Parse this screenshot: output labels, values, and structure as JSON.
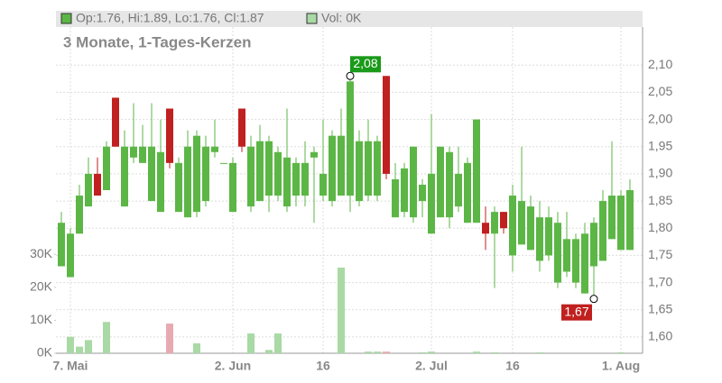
{
  "chart_data": {
    "type": "candlestick",
    "title": "3 Monate, 1-Tages-Kerzen",
    "legend": [
      "Op:1.76, Hi:1.89, Lo:1.76, Cl:1.87",
      "Vol: 0K"
    ],
    "up_color": "#5cb646",
    "down_color": "#c0201f",
    "volume_up_color": "#a9d9a4",
    "volume_down_color": "#e9a9b1",
    "categories": [
      null,
      "7. Mai",
      null,
      null,
      null,
      null,
      null,
      null,
      null,
      null,
      null,
      null,
      null,
      null,
      null,
      null,
      null,
      null,
      null,
      "2. Jun",
      null,
      null,
      null,
      null,
      null,
      null,
      null,
      null,
      null,
      "16",
      null,
      null,
      null,
      null,
      null,
      null,
      null,
      null,
      null,
      null,
      null,
      "2. Jul",
      null,
      null,
      null,
      null,
      null,
      null,
      null,
      null,
      "16",
      null,
      null,
      null,
      null,
      null,
      null,
      null,
      null,
      null,
      null,
      null,
      "1. Aug",
      null
    ],
    "series": [
      {
        "name": "open",
        "values": [
          1.73,
          1.71,
          1.79,
          1.84,
          1.9,
          1.87,
          2.04,
          1.84,
          1.93,
          1.92,
          1.85,
          1.83,
          2.02,
          1.83,
          1.82,
          1.83,
          1.85,
          1.94,
          1.92,
          1.83,
          2.02,
          1.84,
          1.85,
          1.86,
          1.86,
          1.84,
          1.86,
          1.86,
          1.93,
          1.86,
          1.85,
          1.86,
          1.86,
          1.85,
          1.86,
          1.86,
          2.08,
          1.82,
          1.83,
          1.82,
          1.85,
          1.79,
          1.82,
          1.82,
          1.84,
          1.81,
          1.81,
          1.81,
          1.79,
          1.83,
          1.75,
          1.77,
          1.76,
          1.74,
          1.75,
          1.7,
          1.72,
          1.7,
          1.68,
          1.73,
          1.74,
          1.78,
          1.76,
          1.76
        ]
      },
      {
        "name": "high",
        "values": [
          1.83,
          1.8,
          1.88,
          1.93,
          1.93,
          1.96,
          2.04,
          1.98,
          2.03,
          1.99,
          2.03,
          2.0,
          2.02,
          1.93,
          1.98,
          1.98,
          1.97,
          2.0,
          1.92,
          1.93,
          2.02,
          1.97,
          1.99,
          1.97,
          1.95,
          2.02,
          1.93,
          1.96,
          1.95,
          2.0,
          1.98,
          2.02,
          2.08,
          1.98,
          2.0,
          1.97,
          2.08,
          1.92,
          1.92,
          1.95,
          1.89,
          2.01,
          1.95,
          1.95,
          1.95,
          1.93,
          2.0,
          1.84,
          1.84,
          1.83,
          1.88,
          1.95,
          1.86,
          1.85,
          1.84,
          1.83,
          1.83,
          1.79,
          1.81,
          1.82,
          1.87,
          1.96,
          1.87,
          1.89
        ]
      },
      {
        "name": "low",
        "values": [
          1.73,
          1.71,
          1.79,
          1.84,
          1.86,
          1.87,
          1.95,
          1.84,
          1.92,
          1.92,
          1.85,
          1.83,
          1.91,
          1.83,
          1.82,
          1.82,
          1.84,
          1.93,
          1.92,
          1.83,
          1.94,
          1.83,
          1.85,
          1.83,
          1.85,
          1.83,
          1.84,
          1.84,
          1.81,
          1.85,
          1.84,
          1.86,
          1.83,
          1.84,
          1.85,
          1.85,
          1.89,
          1.82,
          1.82,
          1.81,
          1.82,
          1.79,
          1.82,
          1.8,
          1.83,
          1.81,
          1.81,
          1.76,
          1.69,
          1.79,
          1.72,
          1.77,
          1.76,
          1.72,
          1.74,
          1.69,
          1.71,
          1.69,
          1.68,
          1.67,
          1.74,
          1.78,
          1.76,
          1.76
        ]
      },
      {
        "name": "close",
        "values": [
          1.81,
          1.79,
          1.86,
          1.9,
          1.86,
          1.95,
          1.95,
          1.95,
          1.95,
          1.95,
          1.95,
          1.94,
          1.92,
          1.92,
          1.95,
          1.97,
          1.95,
          1.95,
          1.92,
          1.92,
          1.95,
          1.95,
          1.96,
          1.96,
          1.94,
          1.93,
          1.92,
          1.92,
          1.94,
          1.9,
          1.97,
          1.97,
          2.07,
          1.96,
          1.96,
          1.96,
          1.9,
          1.89,
          1.91,
          1.95,
          1.88,
          1.9,
          1.95,
          1.94,
          1.9,
          1.92,
          2.0,
          1.79,
          1.83,
          1.8,
          1.86,
          1.85,
          1.84,
          1.82,
          1.82,
          1.81,
          1.78,
          1.78,
          1.79,
          1.81,
          1.85,
          1.86,
          1.86,
          1.87
        ]
      },
      {
        "name": "volume",
        "values": [
          0,
          5000,
          2000,
          4000,
          0,
          9500,
          0,
          0,
          0,
          0,
          0,
          0,
          9000,
          0,
          0,
          3000,
          0,
          0,
          0,
          0,
          0,
          6000,
          0,
          1000,
          6000,
          0,
          0,
          0,
          0,
          0,
          0,
          26000,
          0,
          0,
          500,
          500,
          500,
          0,
          0,
          0,
          300,
          500,
          0,
          0,
          0,
          0,
          500,
          0,
          300,
          0,
          0,
          0,
          0,
          300,
          0,
          0,
          0,
          0,
          0,
          0,
          0,
          0,
          300,
          0
        ]
      }
    ],
    "ylim": [
      1.57,
      2.17
    ],
    "yticks": [
      {
        "value": 1.6,
        "label": "1,60"
      },
      {
        "value": 1.65,
        "label": "1,65"
      },
      {
        "value": 1.7,
        "label": "1,70"
      },
      {
        "value": 1.75,
        "label": "1,75"
      },
      {
        "value": 1.8,
        "label": "1,80"
      },
      {
        "value": 1.85,
        "label": "1,85"
      },
      {
        "value": 1.9,
        "label": "1,90"
      },
      {
        "value": 1.95,
        "label": "1,95"
      },
      {
        "value": 2.0,
        "label": "2,00"
      },
      {
        "value": 2.05,
        "label": "2,05"
      },
      {
        "value": 2.1,
        "label": "2,10"
      }
    ],
    "volume_ylim": [
      0,
      35000
    ],
    "volume_ticks": [
      {
        "value": 0,
        "label": "0K"
      },
      {
        "value": 10000,
        "label": "10K"
      },
      {
        "value": 20000,
        "label": "20K"
      },
      {
        "value": 30000,
        "label": "30K"
      }
    ],
    "high_label": {
      "value": 2.08,
      "label": "2,08"
    },
    "low_label": {
      "value": 1.67,
      "label": "1,67"
    },
    "grid": true
  }
}
